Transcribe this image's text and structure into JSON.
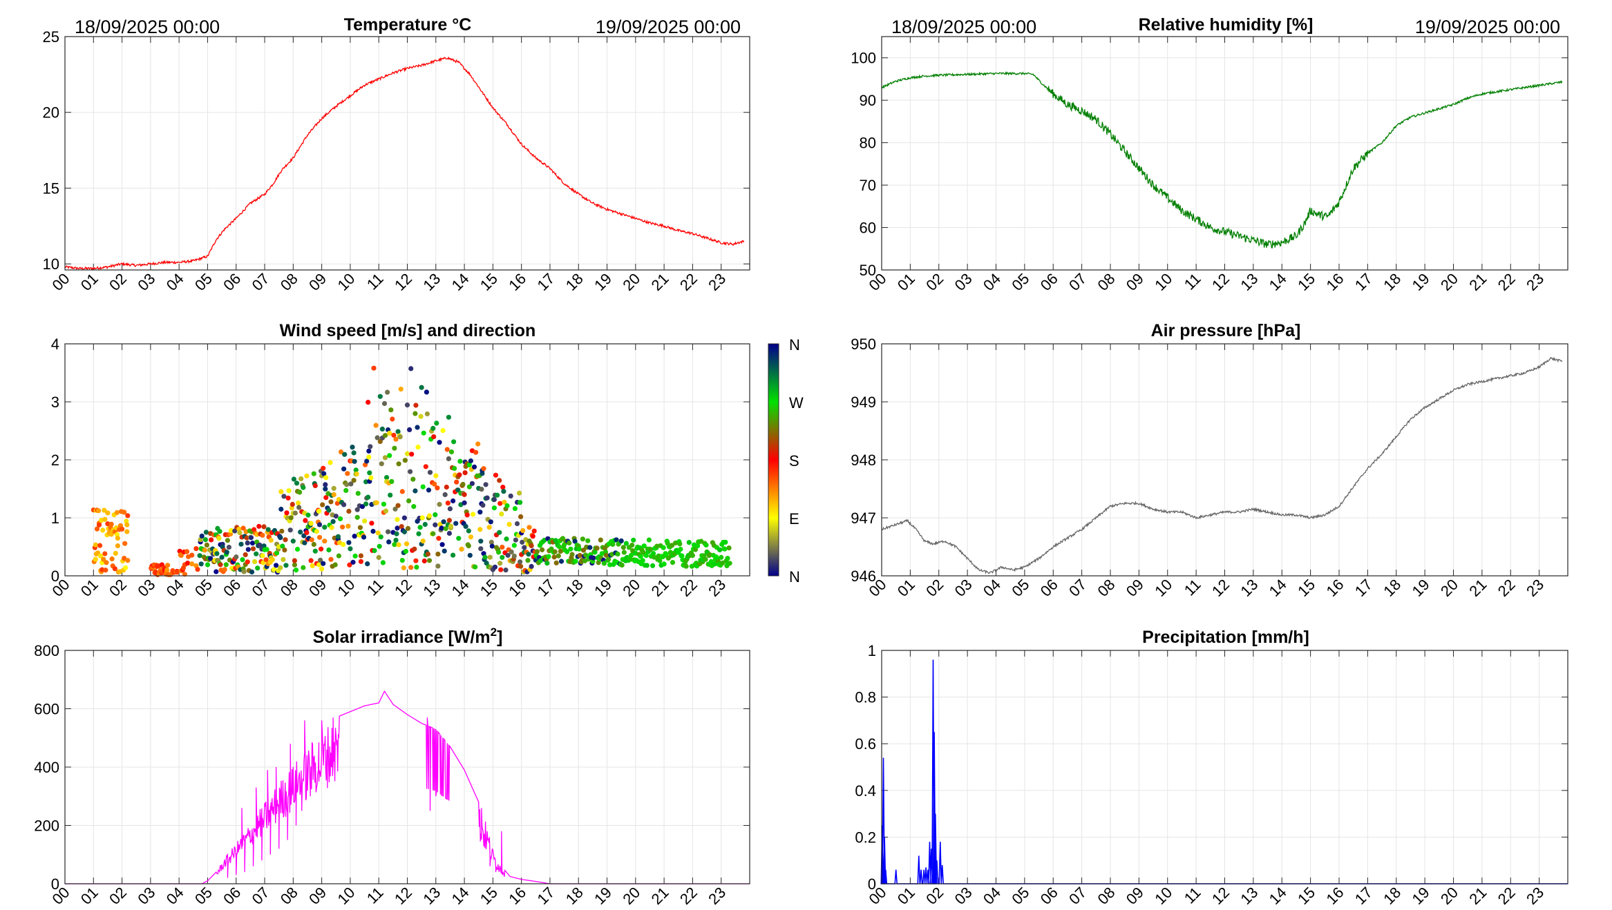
{
  "header": {
    "start_datetime": "18/09/2025 00:00",
    "end_datetime": "19/09/2025 00:00"
  },
  "hour_labels": [
    "00",
    "01",
    "02",
    "03",
    "04",
    "05",
    "06",
    "07",
    "08",
    "09",
    "10",
    "11",
    "12",
    "13",
    "14",
    "15",
    "16",
    "17",
    "18",
    "19",
    "20",
    "21",
    "22",
    "23"
  ],
  "colors": {
    "temperature": "#ff0000",
    "humidity": "#007f00",
    "pressure": "#666666",
    "solar": "#ff00ff",
    "precipitation": "#0000ff",
    "grid": "#e5e5e5",
    "axis": "#262626"
  },
  "chart_data": [
    {
      "id": "temperature",
      "type": "line",
      "title": "Temperature °C",
      "ylim": [
        9.6,
        25
      ],
      "yticks": [
        10,
        15,
        20,
        25
      ],
      "xlim": [
        0,
        24
      ],
      "x": [
        0,
        0.5,
        1,
        1.5,
        2,
        2.5,
        3,
        3.5,
        4,
        4.5,
        5,
        5.3,
        5.6,
        6,
        6.5,
        7,
        7.3,
        7.6,
        8,
        8.5,
        9,
        9.5,
        10,
        10.5,
        11,
        11.5,
        12,
        12.5,
        13,
        13.4,
        13.8,
        14.2,
        14.6,
        15,
        15.5,
        16,
        16.5,
        17,
        17.5,
        18,
        18.5,
        19,
        19.5,
        20,
        20.5,
        21,
        21.5,
        22,
        22.5,
        23,
        23.4,
        23.8
      ],
      "values": [
        9.8,
        9.7,
        9.7,
        9.8,
        10.0,
        9.9,
        10.0,
        10.1,
        10.1,
        10.2,
        10.5,
        11.6,
        12.3,
        13.0,
        14.0,
        14.6,
        15.3,
        16.2,
        17.0,
        18.5,
        19.6,
        20.4,
        21.1,
        21.8,
        22.2,
        22.6,
        22.9,
        23.1,
        23.4,
        23.6,
        23.3,
        22.5,
        21.4,
        20.3,
        19.2,
        17.9,
        17.0,
        16.3,
        15.3,
        14.6,
        14.0,
        13.6,
        13.3,
        13.0,
        12.7,
        12.5,
        12.2,
        12.0,
        11.7,
        11.4,
        11.3,
        11.5
      ]
    },
    {
      "id": "humidity",
      "type": "line",
      "title": "Relative humidity [%]",
      "ylim": [
        50,
        105
      ],
      "yticks": [
        50,
        60,
        70,
        80,
        90,
        100
      ],
      "xlim": [
        0,
        24
      ],
      "x": [
        0,
        0.5,
        1,
        1.5,
        2,
        3,
        4,
        5,
        5.3,
        5.6,
        6,
        6.5,
        7,
        7.5,
        8,
        8.5,
        9,
        9.5,
        10,
        10.5,
        11,
        11.5,
        12,
        12.5,
        13,
        13.5,
        14,
        14.5,
        14.8,
        15,
        15.3,
        15.6,
        16,
        16.5,
        17,
        17.5,
        18,
        18.5,
        19,
        19.5,
        20,
        20.5,
        21,
        21.5,
        22,
        22.5,
        23,
        23.5,
        23.8
      ],
      "values": [
        93,
        94.5,
        95.3,
        95.7,
        95.9,
        96.1,
        96.3,
        96.3,
        96.1,
        94,
        91.5,
        89,
        87.5,
        85.5,
        82,
        78,
        74,
        70,
        67,
        64,
        62,
        60,
        59,
        58,
        57,
        56,
        56.5,
        58,
        61,
        64,
        63,
        62.5,
        66,
        74,
        77.5,
        80,
        84,
        86,
        87,
        88,
        89,
        90.5,
        91.5,
        92,
        92.5,
        93,
        93.5,
        94,
        94.3
      ]
    },
    {
      "id": "wind",
      "type": "scatter",
      "title": "Wind speed [m/s] and direction",
      "ylim": [
        0,
        4
      ],
      "yticks": [
        0,
        1,
        2,
        3,
        4
      ],
      "xlim": [
        0,
        24
      ],
      "colorbar": {
        "labels": [
          "N",
          "W",
          "S",
          "E",
          "N"
        ],
        "stops": [
          "#00008b",
          "#00e100",
          "#ff0000",
          "#ffff00",
          "#00008b"
        ]
      }
    },
    {
      "id": "pressure",
      "type": "line",
      "title": "Air pressure [hPa]",
      "ylim": [
        946,
        950
      ],
      "yticks": [
        946,
        947,
        948,
        949,
        950
      ],
      "xlim": [
        0,
        24
      ],
      "x": [
        0,
        0.3,
        0.6,
        0.9,
        1.2,
        1.5,
        1.8,
        2.2,
        2.6,
        3,
        3.4,
        3.8,
        4.2,
        4.6,
        5,
        5.5,
        6,
        6.5,
        7,
        7.5,
        8,
        8.5,
        9,
        9.5,
        10,
        10.5,
        11,
        11.5,
        12,
        12.5,
        13,
        13.5,
        14,
        14.5,
        15,
        15.5,
        16,
        16.3,
        16.6,
        17,
        17.5,
        18,
        18.5,
        19,
        19.5,
        20,
        20.5,
        21,
        21.5,
        22,
        22.5,
        23,
        23.4,
        23.8
      ],
      "values": [
        946.8,
        946.85,
        946.9,
        946.95,
        946.8,
        946.6,
        946.55,
        946.6,
        946.5,
        946.3,
        946.1,
        946.05,
        946.15,
        946.1,
        946.15,
        946.3,
        946.5,
        946.65,
        946.8,
        947.0,
        947.2,
        947.25,
        947.25,
        947.15,
        947.1,
        947.1,
        947.0,
        947.05,
        947.1,
        947.1,
        947.15,
        947.1,
        947.05,
        947.05,
        947.0,
        947.05,
        947.2,
        947.4,
        947.6,
        947.85,
        948.1,
        948.4,
        948.7,
        948.9,
        949.05,
        949.2,
        949.3,
        949.35,
        949.4,
        949.45,
        949.5,
        949.6,
        949.75,
        949.7
      ]
    },
    {
      "id": "solar",
      "type": "line",
      "title_prefix": "Solar irradiance [W/m",
      "title_sup": "2",
      "title_suffix": "]",
      "ylim": [
        0,
        800
      ],
      "yticks": [
        0,
        200,
        400,
        600,
        800
      ],
      "xlim": [
        0,
        24
      ],
      "x": [
        0,
        4.8,
        5.0,
        5.3,
        5.6,
        6.0,
        6.5,
        7.0,
        7.5,
        8.0,
        8.5,
        9.0,
        9.5,
        10.0,
        10.5,
        11.0,
        11.2,
        11.5,
        12.0,
        12.5,
        13.0,
        13.5,
        14.0,
        14.5,
        14.8,
        15.0,
        15.3,
        15.6,
        16.0,
        16.5,
        17.0,
        24
      ],
      "values": [
        0,
        0,
        10,
        40,
        90,
        140,
        210,
        280,
        350,
        410,
        470,
        530,
        570,
        590,
        610,
        620,
        660,
        615,
        580,
        550,
        530,
        470,
        390,
        280,
        200,
        120,
        60,
        25,
        15,
        8,
        0,
        0
      ],
      "dips": [
        {
          "x": 5.7,
          "v": 20
        },
        {
          "x": 6.0,
          "v": 30
        },
        {
          "x": 6.3,
          "v": 40
        },
        {
          "x": 6.6,
          "v": 60
        },
        {
          "x": 6.9,
          "v": 80
        },
        {
          "x": 7.2,
          "v": 100
        },
        {
          "x": 7.5,
          "v": 120
        },
        {
          "x": 7.8,
          "v": 150
        },
        {
          "x": 8.1,
          "v": 200
        },
        {
          "x": 8.3,
          "v": 250
        },
        {
          "x": 8.6,
          "v": 300
        },
        {
          "x": 8.9,
          "v": 350
        },
        {
          "x": 9.2,
          "v": 420
        },
        {
          "x": 12.8,
          "v": 250
        },
        {
          "x": 13.0,
          "v": 300
        },
        {
          "x": 13.4,
          "v": 380
        },
        {
          "x": 14.9,
          "v": 60
        },
        {
          "x": 15.1,
          "v": 40
        }
      ],
      "spikes": [
        {
          "x": 6.2,
          "v": 260
        },
        {
          "x": 6.7,
          "v": 330
        },
        {
          "x": 7.1,
          "v": 390
        },
        {
          "x": 7.4,
          "v": 400
        },
        {
          "x": 7.9,
          "v": 480
        },
        {
          "x": 8.4,
          "v": 560
        },
        {
          "x": 9.0,
          "v": 560
        },
        {
          "x": 9.4,
          "v": 570
        },
        {
          "x": 12.7,
          "v": 570
        },
        {
          "x": 14.6,
          "v": 260
        },
        {
          "x": 15.3,
          "v": 180
        }
      ]
    },
    {
      "id": "precipitation",
      "type": "line",
      "title": "Precipitation [mm/h]",
      "ylim": [
        0,
        1
      ],
      "yticks": [
        0,
        0.2,
        0.4,
        0.6,
        0.8,
        1
      ],
      "ytick_labels": [
        "0",
        "0.2",
        "0.4",
        "0.6",
        "0.8",
        "1"
      ],
      "xlim": [
        0,
        24
      ],
      "spikes": [
        {
          "x": 0.02,
          "v": 0.25
        },
        {
          "x": 0.06,
          "v": 0.54
        },
        {
          "x": 0.1,
          "v": 0.2
        },
        {
          "x": 0.14,
          "v": 0.06
        },
        {
          "x": 0.5,
          "v": 0.06
        },
        {
          "x": 1.3,
          "v": 0.12
        },
        {
          "x": 1.38,
          "v": 0.06
        },
        {
          "x": 1.48,
          "v": 0.06
        },
        {
          "x": 1.55,
          "v": 0.07
        },
        {
          "x": 1.62,
          "v": 0.06
        },
        {
          "x": 1.68,
          "v": 0.18
        },
        {
          "x": 1.74,
          "v": 0.15
        },
        {
          "x": 1.8,
          "v": 0.96
        },
        {
          "x": 1.84,
          "v": 0.65
        },
        {
          "x": 1.88,
          "v": 0.3
        },
        {
          "x": 1.93,
          "v": 0.1
        },
        {
          "x": 2.05,
          "v": 0.18
        },
        {
          "x": 2.12,
          "v": 0.08
        }
      ]
    }
  ]
}
